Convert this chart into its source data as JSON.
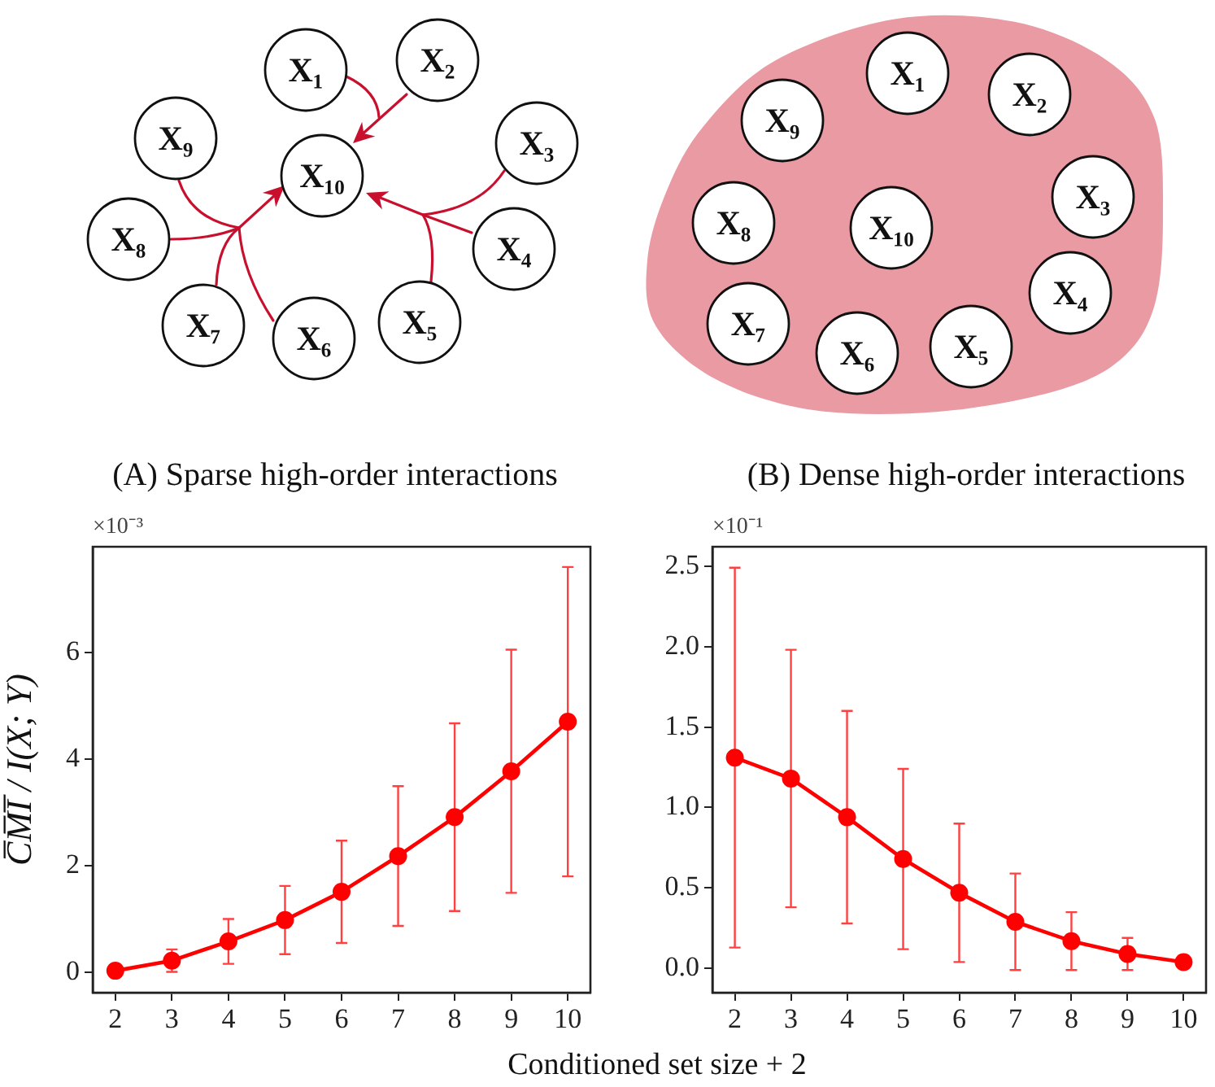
{
  "chart_data": [
    {
      "type": "other",
      "title": "(A) Sparse high-order interactions",
      "annotations": [
        "X₁",
        "X₂",
        "X₃",
        "X₄",
        "X₅",
        "X₆",
        "X₇",
        "X₈",
        "X₉",
        "X₁₀"
      ]
    },
    {
      "type": "other",
      "title": "(B) Dense high-order interactions",
      "annotations": [
        "X₁",
        "X₂",
        "X₃",
        "X₄",
        "X₅",
        "X₆",
        "X₇",
        "X₈",
        "X₉",
        "X₁₀"
      ]
    },
    {
      "type": "line",
      "xlabel": "Conditioned set size + 2",
      "ylabel": "C̅M̅I̅ / I(X; Y)",
      "annotations": [
        "×10⁻³"
      ],
      "x": [
        2,
        3,
        4,
        5,
        6,
        7,
        8,
        9,
        10
      ],
      "values": [
        0.03,
        0.22,
        0.58,
        0.98,
        1.51,
        2.18,
        2.91,
        3.77,
        4.7
      ],
      "errors": [
        null,
        0.21,
        0.42,
        0.64,
        0.96,
        1.31,
        1.76,
        2.28,
        2.9
      ],
      "color": "#ff0000",
      "marker": "circle",
      "xlim": [
        1.6,
        10.4
      ],
      "xticks": [
        2,
        3,
        4,
        5,
        6,
        7,
        8,
        9,
        10
      ],
      "ylim": [
        -0.38,
        7.98
      ],
      "yticks": [
        0,
        2,
        4,
        6
      ]
    },
    {
      "type": "line",
      "annotations": [
        "×10⁻¹"
      ],
      "x": [
        2,
        3,
        4,
        5,
        6,
        7,
        8,
        9,
        10
      ],
      "values": [
        1.31,
        1.18,
        0.94,
        0.68,
        0.47,
        0.29,
        0.17,
        0.09,
        0.04
      ],
      "errors": [
        1.18,
        0.8,
        0.66,
        0.56,
        0.43,
        0.3,
        0.18,
        0.1,
        null
      ],
      "color": "#ff0000",
      "marker": "circle",
      "xlim": [
        1.6,
        10.4
      ],
      "xticks": [
        2,
        3,
        4,
        5,
        6,
        7,
        8,
        9,
        10
      ],
      "ylim": [
        -0.15,
        2.62
      ],
      "yticks": [
        {
          "value": 0,
          "label": "0.0"
        },
        {
          "value": 0.5,
          "label": "0.5"
        },
        {
          "value": 1,
          "label": "1.0"
        },
        {
          "value": 1.5,
          "label": "1.5"
        },
        {
          "value": 2,
          "label": "2.0"
        },
        {
          "value": 2.5,
          "label": "2.5"
        }
      ]
    }
  ]
}
